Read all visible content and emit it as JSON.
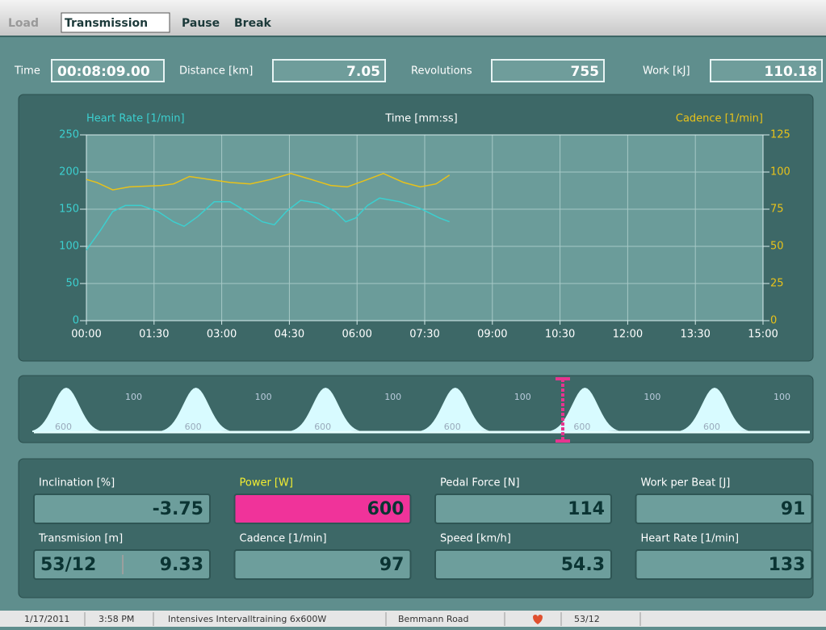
{
  "tabs": [
    "Load",
    "Transmission",
    "Pause",
    "Break"
  ],
  "top_fields": [
    {
      "label": "Time",
      "value": "00:08:09.00"
    },
    {
      "label": "Distance [km]",
      "value": "7.05"
    },
    {
      "label": "Revolutions",
      "value": "755"
    },
    {
      "label": "Work [kJ]",
      "value": "110.18"
    }
  ],
  "chart": {
    "type": "line",
    "y_label": "Heart Rate [1/min]",
    "x_label": "Time [mm:ss]",
    "y2_label": "Cadence [1/min]",
    "xlim": [
      0,
      900
    ],
    "xticks": [
      {
        "value": 0,
        "label": "00:00"
      },
      {
        "value": 90,
        "label": "01:30"
      },
      {
        "value": 180,
        "label": "03:00"
      },
      {
        "value": 270,
        "label": "04:30"
      },
      {
        "value": 360,
        "label": "06:00"
      },
      {
        "value": 450,
        "label": "07:30"
      },
      {
        "value": 540,
        "label": "09:00"
      },
      {
        "value": 630,
        "label": "10:30"
      },
      {
        "value": 720,
        "label": "12:00"
      },
      {
        "value": 810,
        "label": "13:30"
      },
      {
        "value": 900,
        "label": "15:00"
      }
    ],
    "ylim": [
      0,
      250
    ],
    "yticks": [
      0,
      50,
      100,
      150,
      200,
      250
    ],
    "y2lim": [
      0,
      125
    ],
    "y2ticks": [
      0,
      25,
      50,
      75,
      100,
      125
    ],
    "grid": true,
    "series": [
      {
        "name": "Heart Rate",
        "color": "#3ccfcf",
        "x": [
          0,
          19,
          35,
          52,
          73,
          95,
          116,
          130,
          148,
          170,
          191,
          213,
          234,
          250,
          266,
          285,
          309,
          331,
          345,
          358,
          374,
          390,
          417,
          444,
          470,
          483
        ],
        "values": [
          95,
          122,
          147,
          155,
          155,
          147,
          133,
          127,
          140,
          160,
          160,
          147,
          133,
          129,
          147,
          162,
          158,
          147,
          133,
          138,
          155,
          165,
          160,
          151,
          138,
          133
        ]
      },
      {
        "name": "Cadence",
        "color": "#e8c21a",
        "axis": "y2",
        "x": [
          0,
          14,
          35,
          57,
          100,
          116,
          137,
          164,
          191,
          218,
          245,
          272,
          299,
          325,
          347,
          374,
          395,
          422,
          444,
          465,
          483
        ],
        "values": [
          95,
          93,
          88,
          90,
          91,
          92,
          97,
          95,
          93,
          92,
          95,
          99,
          95,
          91,
          90,
          95,
          99,
          93,
          90,
          92,
          98
        ]
      }
    ]
  },
  "profile": {
    "intervals": [
      {
        "power": "600",
        "rest": "100"
      },
      {
        "power": "600",
        "rest": "100"
      },
      {
        "power": "600",
        "rest": "100"
      },
      {
        "power": "600",
        "rest": "100"
      },
      {
        "power": "600",
        "rest": "100"
      },
      {
        "power": "600",
        "rest": "100"
      }
    ]
  },
  "gauges": [
    {
      "label": "Inclination [%]",
      "value": "-3.75"
    },
    {
      "label": "Power [W]",
      "value": "600"
    },
    {
      "label": "Pedal Force [N]",
      "value": "114"
    },
    {
      "label": "Work per Beat [J]",
      "value": "91"
    },
    {
      "label": "Transmision [m]",
      "value": [
        "53/12",
        "9.33"
      ]
    },
    {
      "label": "Cadence [1/min]",
      "value": "97"
    },
    {
      "label": "Speed [km/h]",
      "value": "54.3"
    },
    {
      "label": "Heart Rate [1/min]",
      "value": "133"
    }
  ],
  "status": [
    "1/17/2011",
    "3:58 PM",
    "Intensives Intervalltraining 6x600W",
    "Bemmann Road",
    "53/12"
  ]
}
